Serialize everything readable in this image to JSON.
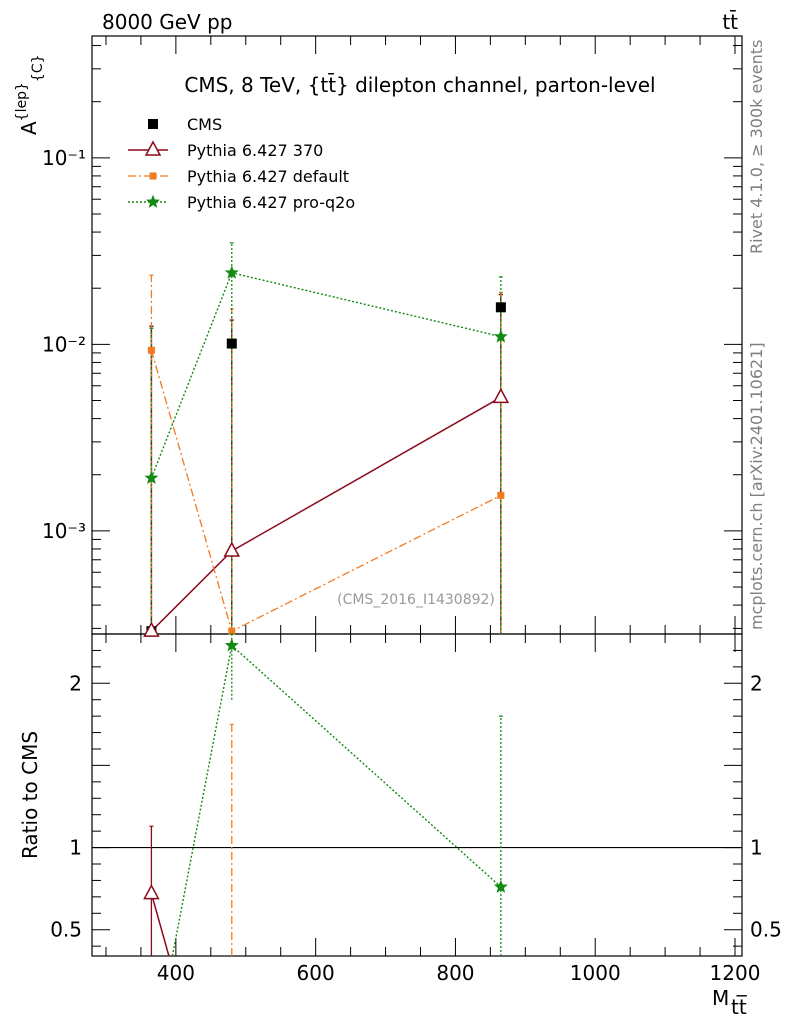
{
  "header": {
    "left": "8000 GeV pp",
    "right": "tt̄"
  },
  "side_text": {
    "top": "Rivet 4.1.0, ≥ 300k events",
    "bottom": "mcplots.cern.ch [arXiv:2401.10621]"
  },
  "watermark": "(CMS_2016_I1430892)",
  "colors": {
    "cms": "#000000",
    "p370": "#8b0a1c",
    "pdefault": "#f27a21",
    "pq2o": "#138a13"
  },
  "chart_data": [
    {
      "type": "scatter",
      "panel": "main",
      "title": "CMS, 8 TeV, {tt̄} dilepton channel, parton-level",
      "xlabel": "M_tt̄",
      "ylabel": "A^{lep}_C",
      "yscale": "log",
      "xlim": [
        280,
        1210
      ],
      "ylim": [
        0.00028,
        0.45
      ],
      "yticks": [
        {
          "v": 0.001,
          "label": "10⁻³"
        },
        {
          "v": 0.01,
          "label": "10⁻²"
        },
        {
          "v": 0.1,
          "label": "10⁻¹"
        }
      ],
      "ylabel_parts": {
        "base": "A",
        "sup": "{lep}",
        "sub": "{C}"
      },
      "series": [
        {
          "name": "CMS",
          "key": "cms",
          "style": "square-marker",
          "points": [
            {
              "x": 365,
              "y": 0.00029,
              "ylo": 0.00028,
              "yhi": 0.0125
            },
            {
              "x": 480,
              "y": 0.0101,
              "ylo": 0.00028,
              "yhi": 0.0135
            },
            {
              "x": 865,
              "y": 0.0158,
              "ylo": 0.00028,
              "yhi": 0.0185
            }
          ]
        },
        {
          "name": "Pythia 6.427 370",
          "key": "p370",
          "style": "solid-line-triangle",
          "points": [
            {
              "x": 365,
              "y": 0.00029,
              "ylo": 0.00028,
              "yhi": 0.0125
            },
            {
              "x": 480,
              "y": 0.00078,
              "ylo": 0.00028,
              "yhi": 0.0135
            },
            {
              "x": 865,
              "y": 0.0052,
              "ylo": 0.00028,
              "yhi": 0.0185
            }
          ]
        },
        {
          "name": "Pythia 6.427 default",
          "key": "pdefault",
          "style": "dashdot-line-square",
          "points": [
            {
              "x": 365,
              "y": 0.0093,
              "ylo": 0.00028,
              "yhi": 0.0235
            },
            {
              "x": 480,
              "y": 0.00029,
              "ylo": 0.00028,
              "yhi": 0.0155
            },
            {
              "x": 865,
              "y": 0.00155,
              "ylo": 0.00028,
              "yhi": 0.019
            }
          ]
        },
        {
          "name": "Pythia 6.427 pro-q2o",
          "key": "pq2o",
          "style": "dotted-line-star",
          "points": [
            {
              "x": 365,
              "y": 0.00192,
              "ylo": 0.00028,
              "yhi": 0.0122
            },
            {
              "x": 480,
              "y": 0.0242,
              "ylo": 0.00028,
              "yhi": 0.035
            },
            {
              "x": 865,
              "y": 0.011,
              "ylo": 0.00028,
              "yhi": 0.023
            }
          ]
        }
      ]
    },
    {
      "type": "scatter",
      "panel": "ratio",
      "ylabel": "Ratio to CMS",
      "yscale": "linear",
      "xlim": [
        280,
        1210
      ],
      "ylim": [
        0.34,
        2.3
      ],
      "xticks": [
        400,
        600,
        800,
        1000,
        1200
      ],
      "yticks": [
        {
          "v": 0.5,
          "label": "0.5"
        },
        {
          "v": 1,
          "label": "1"
        },
        {
          "v": 2,
          "label": "2"
        }
      ],
      "reference_line": 1,
      "series": [
        {
          "name": "Pythia 6.427 370",
          "key": "p370",
          "style": "solid-line-triangle",
          "points": [
            {
              "x": 365,
              "y": 0.72,
              "ylo": 0.34,
              "yhi": 1.13
            },
            {
              "x": 390,
              "y": 0.34
            }
          ]
        },
        {
          "name": "Pythia 6.427 default",
          "key": "pdefault",
          "style": "dashdot-errorbar",
          "points": [
            {
              "x": 480,
              "y": 1.5,
              "ylo": 0.34,
              "yhi": 1.75
            }
          ]
        },
        {
          "name": "Pythia 6.427 pro-q2o",
          "key": "pq2o",
          "style": "dotted-line-star",
          "points": [
            {
              "x": 395,
              "y": 0.34
            },
            {
              "x": 480,
              "y": 2.23,
              "ylo": 1.9,
              "yhi": 2.3
            },
            {
              "x": 865,
              "y": 0.76,
              "ylo": 0.34,
              "yhi": 1.8
            }
          ]
        }
      ]
    }
  ]
}
